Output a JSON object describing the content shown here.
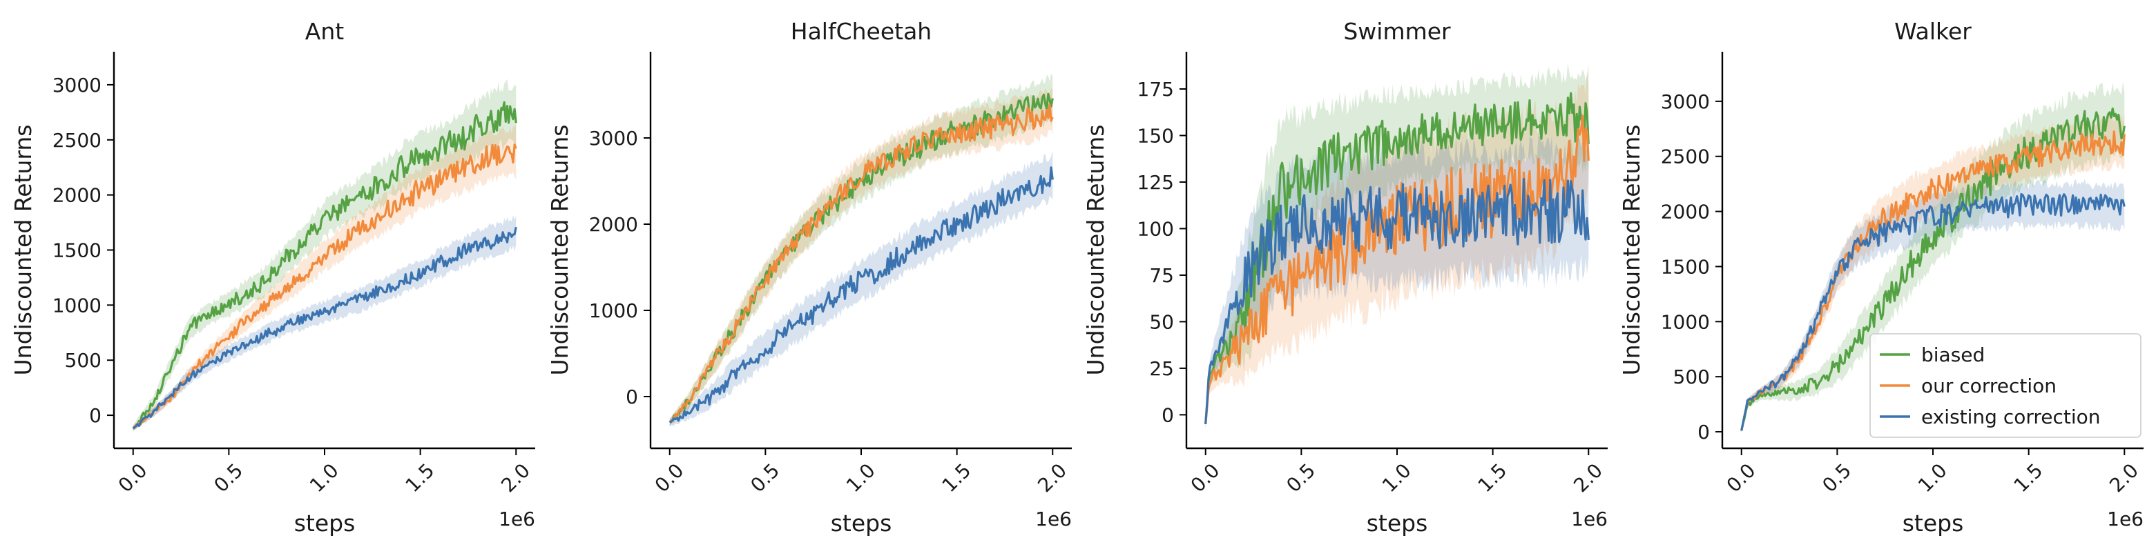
{
  "chart_data": [
    {
      "type": "line",
      "title": "Ant",
      "xlabel": "steps",
      "ylabel": "Undiscounted Returns",
      "x_offset_label": "1e6",
      "xlim": [
        -0.1,
        2.1
      ],
      "ylim": [
        -300,
        3300
      ],
      "xticks": [
        "0.0",
        "0.5",
        "1.0",
        "1.5",
        "2.0"
      ],
      "yticks": [
        "0",
        "500",
        "1000",
        "1500",
        "2000",
        "2500",
        "3000"
      ],
      "legend": null,
      "series": [
        {
          "name": "biased",
          "color": "#55a244",
          "x": [
            0.0,
            0.1,
            0.2,
            0.3,
            0.4,
            0.5,
            0.6,
            0.7,
            0.8,
            0.9,
            1.0,
            1.1,
            1.2,
            1.3,
            1.4,
            1.5,
            1.6,
            1.7,
            1.8,
            1.9,
            2.0
          ],
          "y": [
            -120,
            100,
            450,
            800,
            920,
            1000,
            1120,
            1230,
            1420,
            1600,
            1780,
            1900,
            2000,
            2100,
            2250,
            2350,
            2420,
            2500,
            2600,
            2700,
            2750
          ],
          "band": [
            30,
            60,
            80,
            90,
            90,
            100,
            110,
            120,
            130,
            140,
            150,
            160,
            170,
            180,
            190,
            200,
            200,
            220,
            240,
            250,
            250
          ]
        },
        {
          "name": "our correction",
          "color": "#f28a3c",
          "x": [
            0.0,
            0.1,
            0.2,
            0.3,
            0.4,
            0.5,
            0.6,
            0.7,
            0.8,
            0.9,
            1.0,
            1.1,
            1.2,
            1.3,
            1.4,
            1.5,
            1.6,
            1.7,
            1.8,
            1.9,
            2.0
          ],
          "y": [
            -120,
            20,
            170,
            380,
            560,
            720,
            880,
            1020,
            1150,
            1300,
            1450,
            1580,
            1700,
            1820,
            1940,
            2050,
            2140,
            2220,
            2300,
            2360,
            2400
          ],
          "band": [
            20,
            40,
            50,
            60,
            70,
            80,
            90,
            100,
            110,
            120,
            130,
            140,
            150,
            160,
            170,
            180,
            190,
            200,
            200,
            200,
            200
          ]
        },
        {
          "name": "existing correction",
          "color": "#3a73b0",
          "x": [
            0.0,
            0.1,
            0.2,
            0.3,
            0.4,
            0.5,
            0.6,
            0.7,
            0.8,
            0.9,
            1.0,
            1.1,
            1.2,
            1.3,
            1.4,
            1.5,
            1.6,
            1.7,
            1.8,
            1.9,
            2.0
          ],
          "y": [
            -120,
            20,
            180,
            360,
            470,
            570,
            650,
            740,
            820,
            880,
            940,
            1000,
            1060,
            1130,
            1210,
            1290,
            1380,
            1460,
            1540,
            1600,
            1660
          ],
          "band": [
            20,
            40,
            50,
            60,
            60,
            70,
            70,
            80,
            80,
            90,
            90,
            100,
            100,
            100,
            110,
            110,
            120,
            120,
            130,
            130,
            130
          ]
        }
      ]
    },
    {
      "type": "line",
      "title": "HalfCheetah",
      "xlabel": "steps",
      "ylabel": "Undiscounted Returns",
      "x_offset_label": "1e6",
      "xlim": [
        -0.1,
        2.1
      ],
      "ylim": [
        -600,
        4000
      ],
      "xticks": [
        "0.0",
        "0.5",
        "1.0",
        "1.5",
        "2.0"
      ],
      "yticks": [
        "0",
        "1000",
        "2000",
        "3000"
      ],
      "legend": null,
      "series": [
        {
          "name": "biased",
          "color": "#55a244",
          "x": [
            0.0,
            0.1,
            0.2,
            0.3,
            0.4,
            0.5,
            0.6,
            0.7,
            0.8,
            0.9,
            1.0,
            1.1,
            1.2,
            1.3,
            1.4,
            1.5,
            1.6,
            1.7,
            1.8,
            1.9,
            2.0
          ],
          "y": [
            -300,
            -50,
            300,
            650,
            1000,
            1350,
            1650,
            1900,
            2120,
            2320,
            2500,
            2650,
            2780,
            2900,
            3000,
            3080,
            3150,
            3220,
            3300,
            3380,
            3450
          ],
          "band": [
            40,
            80,
            120,
            150,
            170,
            180,
            190,
            200,
            210,
            210,
            220,
            220,
            230,
            230,
            230,
            230,
            240,
            240,
            240,
            240,
            240
          ]
        },
        {
          "name": "our correction",
          "color": "#f28a3c",
          "x": [
            0.0,
            0.1,
            0.2,
            0.3,
            0.4,
            0.5,
            0.6,
            0.7,
            0.8,
            0.9,
            1.0,
            1.1,
            1.2,
            1.3,
            1.4,
            1.5,
            1.6,
            1.7,
            1.8,
            1.9,
            2.0
          ],
          "y": [
            -300,
            -50,
            300,
            650,
            1000,
            1350,
            1650,
            1900,
            2150,
            2380,
            2560,
            2700,
            2820,
            2920,
            3000,
            3050,
            3100,
            3130,
            3180,
            3230,
            3300
          ],
          "band": [
            40,
            80,
            120,
            150,
            170,
            180,
            190,
            200,
            210,
            210,
            220,
            220,
            230,
            230,
            230,
            230,
            240,
            240,
            240,
            240,
            240
          ]
        },
        {
          "name": "existing correction",
          "color": "#3a73b0",
          "x": [
            0.0,
            0.1,
            0.2,
            0.3,
            0.4,
            0.5,
            0.6,
            0.7,
            0.8,
            0.9,
            1.0,
            1.1,
            1.2,
            1.3,
            1.4,
            1.5,
            1.6,
            1.7,
            1.8,
            1.9,
            2.0
          ],
          "y": [
            -300,
            -180,
            -30,
            180,
            380,
            560,
            740,
            900,
            1050,
            1200,
            1350,
            1480,
            1620,
            1760,
            1880,
            2000,
            2120,
            2240,
            2340,
            2440,
            2550
          ],
          "band": [
            40,
            80,
            120,
            150,
            170,
            180,
            190,
            200,
            210,
            210,
            220,
            220,
            230,
            230,
            230,
            230,
            240,
            240,
            240,
            240,
            240
          ]
        }
      ]
    },
    {
      "type": "line",
      "title": "Swimmer",
      "xlabel": "steps",
      "ylabel": "Undiscounted Returns",
      "x_offset_label": "1e6",
      "xlim": [
        -0.1,
        2.1
      ],
      "ylim": [
        -18,
        195
      ],
      "xticks": [
        "0.0",
        "0.5",
        "1.0",
        "1.5",
        "2.0"
      ],
      "yticks": [
        "0",
        "25",
        "50",
        "75",
        "100",
        "125",
        "150",
        "175"
      ],
      "legend": null,
      "series": [
        {
          "name": "biased",
          "color": "#55a244",
          "x": [
            0.0,
            0.02,
            0.1,
            0.2,
            0.3,
            0.4,
            0.5,
            0.6,
            0.7,
            0.8,
            0.9,
            1.0,
            1.1,
            1.2,
            1.3,
            1.4,
            1.5,
            1.6,
            1.7,
            1.8,
            1.9,
            2.0
          ],
          "y": [
            -5,
            22,
            35,
            55,
            90,
            120,
            130,
            135,
            140,
            142,
            146,
            148,
            150,
            151,
            153,
            155,
            156,
            157,
            158,
            159,
            160,
            158
          ],
          "band": [
            2,
            5,
            10,
            25,
            35,
            35,
            30,
            28,
            26,
            25,
            24,
            23,
            22,
            22,
            21,
            21,
            21,
            21,
            21,
            22,
            23,
            24
          ]
        },
        {
          "name": "our correction",
          "color": "#f28a3c",
          "x": [
            0.0,
            0.02,
            0.1,
            0.2,
            0.3,
            0.4,
            0.5,
            0.6,
            0.7,
            0.8,
            0.9,
            1.0,
            1.1,
            1.2,
            1.3,
            1.4,
            1.5,
            1.6,
            1.7,
            1.8,
            1.9,
            2.0
          ],
          "y": [
            -5,
            18,
            28,
            40,
            55,
            65,
            72,
            80,
            88,
            96,
            100,
            103,
            107,
            110,
            113,
            115,
            116,
            118,
            120,
            125,
            135,
            150
          ],
          "band": [
            2,
            5,
            10,
            20,
            25,
            28,
            30,
            32,
            35,
            38,
            38,
            38,
            38,
            38,
            38,
            38,
            38,
            38,
            38,
            35,
            30,
            28
          ]
        },
        {
          "name": "existing correction",
          "color": "#3a73b0",
          "x": [
            0.0,
            0.02,
            0.1,
            0.2,
            0.3,
            0.4,
            0.5,
            0.6,
            0.7,
            0.8,
            0.9,
            1.0,
            1.1,
            1.2,
            1.3,
            1.4,
            1.5,
            1.6,
            1.7,
            1.8,
            1.9,
            2.0
          ],
          "y": [
            -5,
            25,
            45,
            70,
            88,
            96,
            100,
            102,
            104,
            105,
            106,
            106,
            107,
            107,
            108,
            108,
            108,
            108,
            109,
            109,
            110,
            110
          ],
          "band": [
            2,
            5,
            15,
            25,
            30,
            32,
            32,
            32,
            32,
            32,
            32,
            32,
            32,
            32,
            32,
            32,
            32,
            32,
            32,
            32,
            30,
            30
          ]
        }
      ]
    },
    {
      "type": "line",
      "title": "Walker",
      "xlabel": "steps",
      "ylabel": "Undiscounted Returns",
      "x_offset_label": "1e6",
      "xlim": [
        -0.1,
        2.1
      ],
      "ylim": [
        -150,
        3450
      ],
      "xticks": [
        "0.0",
        "0.5",
        "1.0",
        "1.5",
        "2.0"
      ],
      "yticks": [
        "0",
        "500",
        "1000",
        "1500",
        "2000",
        "2500",
        "3000"
      ],
      "legend": {
        "position": "lower right",
        "entries": [
          "biased",
          "our correction",
          "existing correction"
        ]
      },
      "series": [
        {
          "name": "biased",
          "color": "#55a244",
          "x": [
            0.0,
            0.03,
            0.1,
            0.2,
            0.3,
            0.4,
            0.5,
            0.6,
            0.7,
            0.8,
            0.9,
            1.0,
            1.1,
            1.2,
            1.3,
            1.4,
            1.5,
            1.6,
            1.7,
            1.8,
            1.9,
            2.0
          ],
          "y": [
            10,
            250,
            330,
            350,
            380,
            450,
            600,
            800,
            1050,
            1300,
            1550,
            1750,
            1950,
            2150,
            2300,
            2450,
            2550,
            2620,
            2700,
            2750,
            2800,
            2800
          ],
          "band": [
            20,
            30,
            40,
            60,
            80,
            100,
            140,
            170,
            200,
            220,
            230,
            240,
            250,
            260,
            270,
            280,
            290,
            300,
            300,
            300,
            300,
            300
          ]
        },
        {
          "name": "our correction",
          "color": "#f28a3c",
          "x": [
            0.0,
            0.03,
            0.1,
            0.2,
            0.3,
            0.4,
            0.5,
            0.6,
            0.7,
            0.8,
            0.9,
            1.0,
            1.1,
            1.2,
            1.3,
            1.4,
            1.5,
            1.6,
            1.7,
            1.8,
            1.9,
            2.0
          ],
          "y": [
            10,
            270,
            360,
            450,
            650,
            1000,
            1400,
            1700,
            1880,
            2000,
            2100,
            2200,
            2270,
            2340,
            2400,
            2450,
            2500,
            2540,
            2570,
            2600,
            2620,
            2630
          ],
          "band": [
            20,
            30,
            40,
            60,
            80,
            110,
            140,
            160,
            180,
            190,
            200,
            200,
            200,
            200,
            200,
            200,
            200,
            200,
            200,
            200,
            200,
            200
          ]
        },
        {
          "name": "existing correction",
          "color": "#3a73b0",
          "x": [
            0.0,
            0.03,
            0.1,
            0.2,
            0.3,
            0.4,
            0.5,
            0.6,
            0.7,
            0.8,
            0.9,
            1.0,
            1.1,
            1.2,
            1.3,
            1.4,
            1.5,
            1.6,
            1.7,
            1.8,
            1.9,
            2.0
          ],
          "y": [
            10,
            270,
            360,
            460,
            680,
            1050,
            1450,
            1680,
            1780,
            1850,
            1900,
            1950,
            1990,
            2020,
            2040,
            2050,
            2060,
            2060,
            2070,
            2060,
            2050,
            2030
          ],
          "band": [
            20,
            30,
            40,
            60,
            80,
            110,
            140,
            160,
            170,
            180,
            180,
            180,
            180,
            180,
            180,
            180,
            180,
            180,
            180,
            180,
            180,
            180
          ]
        }
      ]
    }
  ]
}
